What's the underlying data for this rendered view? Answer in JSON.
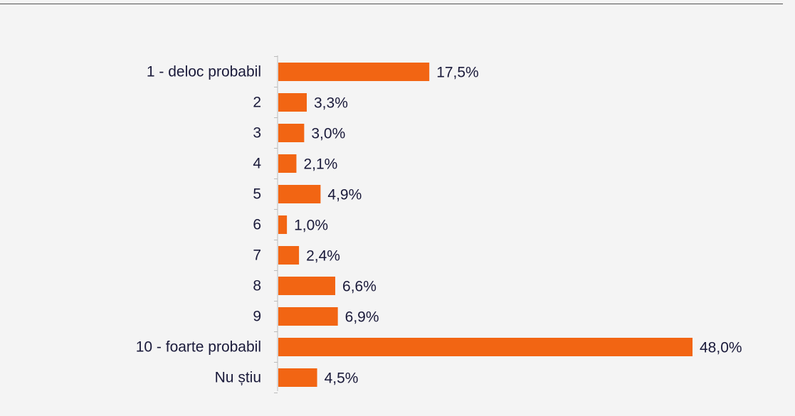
{
  "chart_data": {
    "type": "bar",
    "orientation": "horizontal",
    "categories": [
      "1 - deloc probabil",
      "2",
      "3",
      "4",
      "5",
      "6",
      "7",
      "8",
      "9",
      "10 - foarte probabil",
      "Nu știu"
    ],
    "values": [
      17.5,
      3.3,
      3.0,
      2.1,
      4.9,
      1.0,
      2.4,
      6.6,
      6.9,
      48.0,
      4.5
    ],
    "value_labels": [
      "17,5%",
      "3,3%",
      "3,0%",
      "2,1%",
      "4,9%",
      "1,0%",
      "2,4%",
      "6,6%",
      "6,9%",
      "48,0%",
      "4,5%"
    ],
    "unit": "%",
    "xlim": [
      0,
      48.0
    ],
    "grid": false,
    "bar_color": "#f26513",
    "axis_color": "#bbbbbb",
    "text_color": "#1a1a3a"
  }
}
